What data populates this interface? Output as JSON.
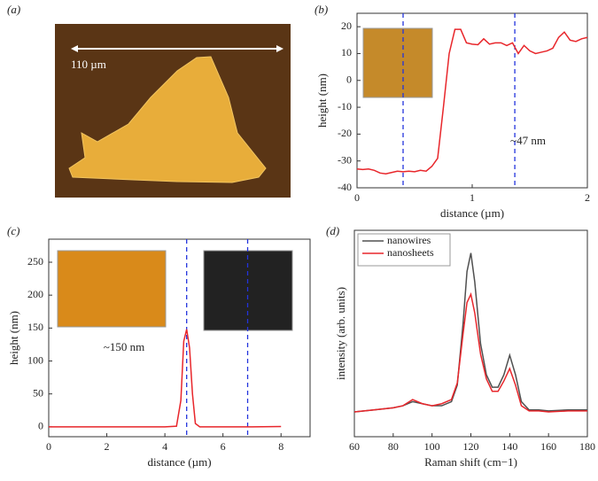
{
  "image_panel": {
    "label": "(a)",
    "scale_text": "110 µm"
  },
  "chart_data": [
    {
      "type": "line",
      "label": "(b)",
      "xlabel": "distance (µm)",
      "ylabel": "height (nm)",
      "annotation": "~47 nm",
      "xlim": [
        0,
        2
      ],
      "xticks": [
        0,
        1,
        2
      ],
      "ylim": [
        -40,
        25
      ],
      "yticks": [
        -40,
        -30,
        -20,
        -10,
        0,
        10,
        20
      ],
      "vlines": [
        0.4,
        1.37
      ],
      "x": [
        0,
        0.05,
        0.1,
        0.15,
        0.2,
        0.25,
        0.3,
        0.35,
        0.4,
        0.45,
        0.5,
        0.55,
        0.6,
        0.65,
        0.7,
        0.75,
        0.8,
        0.85,
        0.9,
        0.95,
        1.0,
        1.05,
        1.1,
        1.15,
        1.2,
        1.25,
        1.3,
        1.35,
        1.4,
        1.45,
        1.5,
        1.55,
        1.6,
        1.65,
        1.7,
        1.75,
        1.8,
        1.85,
        1.9,
        1.95,
        2.0
      ],
      "series": [
        {
          "color": "#e8262b",
          "values": [
            -33,
            -33.2,
            -33,
            -33.5,
            -34.5,
            -34.8,
            -34.3,
            -33.8,
            -34,
            -33.8,
            -34,
            -33.5,
            -33.8,
            -32,
            -29,
            -10,
            10,
            19,
            19,
            14,
            13.5,
            13.3,
            15.5,
            13.5,
            14,
            14,
            13,
            14,
            10,
            13,
            11,
            10,
            10.5,
            11,
            12,
            16,
            18,
            15,
            14.5,
            15.5,
            16
          ]
        }
      ]
    },
    {
      "type": "line",
      "label": "(c)",
      "xlabel": "distance (µm)",
      "ylabel": "height (nm)",
      "annotation": "~150 nm",
      "xlim": [
        0,
        9
      ],
      "xticks": [
        0,
        2,
        4,
        6,
        8
      ],
      "ylim": [
        -15,
        285
      ],
      "yticks": [
        0,
        50,
        100,
        150,
        200,
        250
      ],
      "vlines": [
        4.75,
        6.85
      ],
      "x": [
        0,
        1,
        2,
        3,
        4,
        4.4,
        4.55,
        4.65,
        4.75,
        4.85,
        4.95,
        5.05,
        5.2,
        6,
        7,
        8
      ],
      "series": [
        {
          "color": "#e8262b",
          "values": [
            0,
            0,
            0,
            0,
            0,
            1,
            40,
            130,
            148,
            120,
            50,
            5,
            0,
            0,
            0,
            0.5
          ]
        }
      ]
    },
    {
      "type": "line",
      "label": "(d)",
      "xlabel": "Raman shift (cm−1)",
      "ylabel": "intensity (arb. units)",
      "legend": "upper left",
      "xlim": [
        60,
        180
      ],
      "xticks": [
        60,
        80,
        100,
        120,
        140,
        160,
        180
      ],
      "ylim": [
        0,
        100
      ],
      "x": [
        60,
        70,
        80,
        85,
        90,
        95,
        100,
        105,
        110,
        113,
        116,
        118,
        120,
        122,
        125,
        128,
        131,
        134,
        137,
        140,
        143,
        146,
        150,
        155,
        160,
        170,
        180
      ],
      "series": [
        {
          "name": "nanowires",
          "color": "#505050",
          "values": [
            12,
            13,
            14,
            15,
            17,
            16,
            15,
            15,
            17,
            25,
            55,
            80,
            89,
            75,
            45,
            30,
            24,
            24,
            30,
            39.5,
            30,
            17,
            13,
            13,
            12.5,
            13,
            13
          ]
        },
        {
          "name": "nanosheets",
          "color": "#e8262b",
          "values": [
            12,
            13,
            14,
            15,
            18,
            16,
            15,
            16,
            18,
            26,
            50,
            65,
            69,
            60,
            40,
            28,
            22,
            22,
            27,
            33,
            25,
            15,
            12.5,
            12.5,
            12,
            12.5,
            12.5
          ]
        }
      ]
    }
  ]
}
